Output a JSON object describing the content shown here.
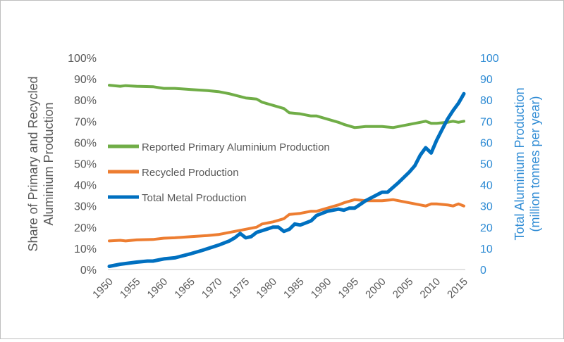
{
  "chart_data": {
    "type": "line",
    "title": "",
    "xlabel": "",
    "ylabel": "Share of Primary and Recycled Aluminium Production",
    "ylabel_lines": [
      "Share of Primary and Recycled",
      "Aluminium Production"
    ],
    "y2label": "Total Aluminium Production (million tonnes per year)",
    "y2label_lines": [
      "Total Aluminium Production",
      "(million tonnes per year)"
    ],
    "xlim": [
      1950,
      2015
    ],
    "ylim": [
      0,
      100
    ],
    "y2lim": [
      0,
      100
    ],
    "x_ticks": [
      "1950",
      "1955",
      "1960",
      "1965",
      "1970",
      "1975",
      "1980",
      "1985",
      "1990",
      "1995",
      "2000",
      "2005",
      "2010",
      "2015"
    ],
    "y_ticks": [
      "0%",
      "10%",
      "20%",
      "30%",
      "40%",
      "50%",
      "60%",
      "70%",
      "80%",
      "90%",
      "100%"
    ],
    "y2_ticks": [
      "0",
      "10",
      "20",
      "30",
      "40",
      "50",
      "60",
      "70",
      "80",
      "90",
      "100"
    ],
    "grid": false,
    "legend_position": "center-left",
    "series": [
      {
        "name": "Reported Primary Aluminium Production",
        "axis": "left",
        "color": "#70ad47",
        "x": [
          1950,
          1952,
          1953,
          1955,
          1958,
          1960,
          1962,
          1965,
          1968,
          1970,
          1972,
          1975,
          1977,
          1978,
          1980,
          1982,
          1983,
          1985,
          1987,
          1988,
          1990,
          1992,
          1993,
          1995,
          1997,
          2000,
          2002,
          2005,
          2007,
          2008,
          2009,
          2010,
          2012,
          2013,
          2014,
          2015
        ],
        "values": [
          87,
          86.5,
          86.8,
          86.5,
          86.3,
          85.5,
          85.5,
          85,
          84.5,
          84,
          83,
          81,
          80.5,
          79,
          77.5,
          76,
          74,
          73.5,
          72.5,
          72.5,
          71,
          69.5,
          68.5,
          67,
          67.5,
          67.5,
          67,
          68.5,
          69.5,
          70,
          69,
          69,
          69.5,
          70,
          69.5,
          70
        ]
      },
      {
        "name": "Recycled Production",
        "axis": "left",
        "color": "#ed7d31",
        "x": [
          1950,
          1952,
          1953,
          1955,
          1958,
          1960,
          1962,
          1965,
          1968,
          1970,
          1972,
          1975,
          1977,
          1978,
          1980,
          1982,
          1983,
          1985,
          1987,
          1988,
          1990,
          1992,
          1993,
          1995,
          1997,
          2000,
          2002,
          2005,
          2007,
          2008,
          2009,
          2010,
          2012,
          2013,
          2014,
          2015
        ],
        "values": [
          13.5,
          13.8,
          13.5,
          14,
          14.2,
          14.8,
          15,
          15.5,
          16,
          16.5,
          17.5,
          19,
          20,
          21.5,
          22.5,
          24,
          26,
          26.5,
          27.5,
          27.5,
          29,
          30.5,
          31.5,
          33,
          32.5,
          32.5,
          33,
          31.5,
          30.5,
          30,
          31,
          31,
          30.5,
          30,
          31,
          30
        ]
      },
      {
        "name": "Total Metal Production",
        "axis": "right",
        "color": "#0070c0",
        "x": [
          1950,
          1952,
          1955,
          1957,
          1958,
          1960,
          1962,
          1965,
          1967,
          1970,
          1972,
          1973,
          1974,
          1975,
          1976,
          1977,
          1980,
          1981,
          1982,
          1983,
          1984,
          1985,
          1986,
          1987,
          1988,
          1990,
          1992,
          1993,
          1994,
          1995,
          1997,
          2000,
          2001,
          2003,
          2005,
          2006,
          2007,
          2008,
          2009,
          2010,
          2011,
          2012,
          2013,
          2014,
          2015
        ],
        "values": [
          1.5,
          2.5,
          3.5,
          4,
          4,
          5,
          5.5,
          7.5,
          9,
          11.5,
          13.5,
          15,
          17,
          15,
          15.5,
          17.5,
          20,
          20,
          18,
          19,
          21.5,
          21,
          22,
          23,
          25.5,
          27.5,
          28.5,
          28,
          29,
          29,
          32.5,
          36.5,
          36.5,
          41,
          46,
          49,
          54,
          57.5,
          55,
          61,
          66,
          71,
          75,
          78.5,
          83
        ]
      }
    ]
  }
}
